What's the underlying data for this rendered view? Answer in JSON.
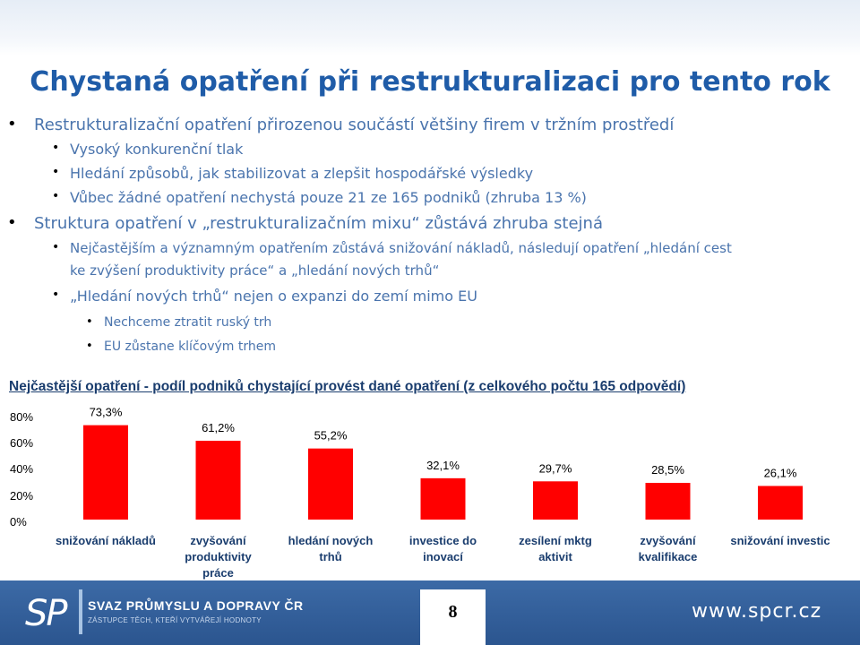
{
  "slide": {
    "title": "Chystaná opatření při restrukturalizaci pro tento rok",
    "bullets": [
      {
        "text": "Restrukturalizační opatření přirozenou součástí většiny firem v tržním prostředí"
      },
      {
        "text": "Vysoký konkurenční tlak"
      },
      {
        "text": "Hledání způsobů, jak stabilizovat a zlepšit hospodářské výsledky"
      },
      {
        "text": "Vůbec žádné opatření nechystá pouze 21 ze 165 podniků (zhruba 13 %)"
      },
      {
        "text": "Struktura opatření v „restrukturalizačním mixu“ zůstává zhruba stejná"
      },
      {
        "text": "Nejčastějším a významným opatřením zůstává snižování nákladů, následují opatření „hledání cest"
      },
      {
        "text": "ke zvýšení produktivity práce“ a „hledání nových trhů“"
      },
      {
        "text": "„Hledání nových trhů“ nejen o expanzi do zemí mimo EU"
      },
      {
        "text": "Nechceme ztratit ruský trh"
      },
      {
        "text": "EU zůstane klíčovým trhem"
      }
    ],
    "chart_heading": "Nejčastější opatření - podíl podniků chystající provést dané opatření (z celkového počtu 165 odpovědí)"
  },
  "chart_data": {
    "type": "bar",
    "categories": [
      "snižování nákladů",
      "zvyšování produktivity práce",
      "hledání nových trhů",
      "investice do inovací",
      "zesílení mktg aktivit",
      "zvyšování kvalifikace",
      "snižování investic"
    ],
    "category_lines": [
      [
        "snižování nákladů"
      ],
      [
        "zvyšování",
        "produktivity",
        "práce"
      ],
      [
        "hledání nových",
        "trhů"
      ],
      [
        "investice do",
        "inovací"
      ],
      [
        "zesílení mktg",
        "aktivit"
      ],
      [
        "zvyšování",
        "kvalifikace"
      ],
      [
        "snižování investic"
      ]
    ],
    "values": [
      73.3,
      61.2,
      55.2,
      32.1,
      29.7,
      28.5,
      26.1
    ],
    "value_labels": [
      "73,3%",
      "61,2%",
      "55,2%",
      "32,1%",
      "29,7%",
      "28,5%",
      "26,1%"
    ],
    "yticks": [
      "0%",
      "20%",
      "40%",
      "60%",
      "80%"
    ],
    "ylim": [
      0,
      80
    ],
    "bar_color": "#ff0000",
    "grid": false
  },
  "footer": {
    "logo_text": "SP",
    "org_name": "SVAZ PRŮMYSLU A DOPRAVY ČR",
    "org_tagline": "ZÁSTUPCE TĚCH, KTEŘÍ VYTVÁŘEJÍ HODNOTY",
    "page_number": "8",
    "website": "www.spcr.cz"
  }
}
